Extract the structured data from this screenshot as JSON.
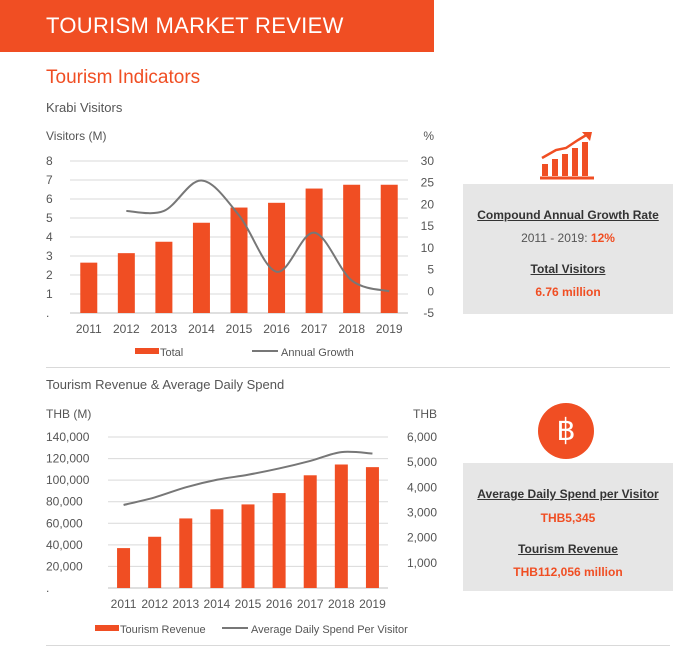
{
  "header": {
    "title": "TOURISM MARKET REVIEW"
  },
  "section": {
    "title": "Tourism Indicators"
  },
  "colors": {
    "accent": "#f04e23",
    "line": "#777777",
    "box": "#e6e6e6"
  },
  "chart_data": [
    {
      "type": "bar",
      "title": "Krabi Visitors",
      "ylabel": "Visitors (M)",
      "y2label": "%",
      "categories": [
        "2011",
        "2012",
        "2013",
        "2014",
        "2015",
        "2016",
        "2017",
        "2018",
        "2019"
      ],
      "ylim": [
        0,
        8
      ],
      "yticks": [
        "8",
        "7",
        "6",
        "5",
        "4",
        "3",
        "2",
        "1",
        "."
      ],
      "y2lim": [
        -5,
        30
      ],
      "y2ticks": [
        "30",
        "25",
        "20",
        "15",
        "10",
        "5",
        "0",
        "-5"
      ],
      "series": [
        {
          "name": "Total",
          "type": "bar",
          "axis": "left",
          "values": [
            2.65,
            3.15,
            3.75,
            4.75,
            5.55,
            5.8,
            6.55,
            6.75,
            6.75
          ]
        },
        {
          "name": "Annual Growth",
          "type": "line",
          "axis": "right",
          "values": [
            null,
            18.5,
            18.5,
            25.5,
            17.5,
            4.5,
            13.5,
            2.5,
            0
          ]
        }
      ],
      "legend_position": "bottom",
      "grid": true
    },
    {
      "type": "bar",
      "title": "Tourism Revenue & Average Daily Spend",
      "ylabel": "THB (M)",
      "y2label": "THB",
      "categories": [
        "2011",
        "2012",
        "2013",
        "2014",
        "2015",
        "2016",
        "2017",
        "2018",
        "2019"
      ],
      "ylim": [
        0,
        140000
      ],
      "yticks": [
        "140,000",
        "120,000",
        "100,000",
        "80,000",
        "60,000",
        "40,000",
        "20,000",
        "."
      ],
      "y2lim": [
        0,
        6000
      ],
      "y2ticks": [
        "6,000",
        "5,000",
        "4,000",
        "3,000",
        "2,000",
        "1,000"
      ],
      "series": [
        {
          "name": "Tourism Revenue",
          "type": "bar",
          "axis": "left",
          "values": [
            37000,
            47500,
            64500,
            73000,
            77500,
            88000,
            104500,
            114500,
            112056
          ]
        },
        {
          "name": "Average Daily Spend Per Visitor",
          "type": "line",
          "axis": "right",
          "values": [
            3300,
            3600,
            4000,
            4300,
            4500,
            4750,
            5050,
            5400,
            5345
          ]
        }
      ],
      "legend_position": "bottom",
      "grid": true
    }
  ],
  "box1": {
    "label1": "Compound Annual Growth Rate",
    "range": "2011 - 2019: ",
    "rate": "12%",
    "label2": "Total Visitors",
    "value2": "6.76 million"
  },
  "box2": {
    "icon_text": "฿",
    "label1": "Average Daily Spend per Visitor",
    "value1": "THB5,345",
    "label2": "Tourism Revenue",
    "value2": "THB112,056 million"
  }
}
